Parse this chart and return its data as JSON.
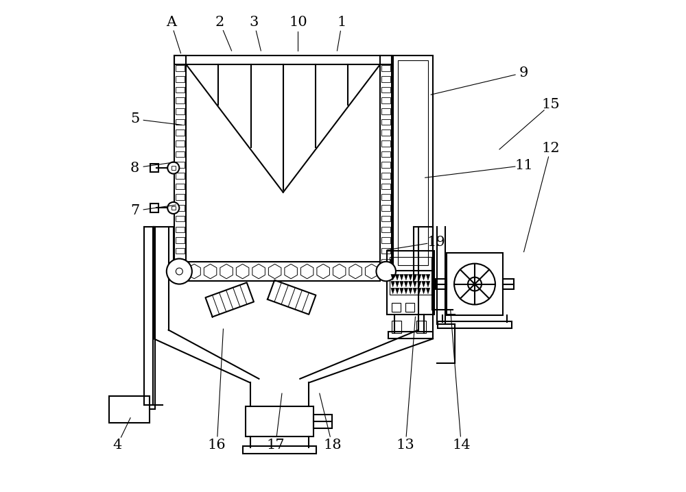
{
  "bg_color": "#ffffff",
  "lc": "#000000",
  "lw": 1.5,
  "fig_width": 10.0,
  "fig_height": 7.18,
  "label_fontsize": 15,
  "label_positions": {
    "A": [
      0.148,
      0.958,
      0.168,
      0.895
    ],
    "2": [
      0.248,
      0.958,
      0.272,
      0.9
    ],
    "3": [
      0.318,
      0.958,
      0.332,
      0.9
    ],
    "10": [
      0.408,
      0.958,
      0.408,
      0.9
    ],
    "1": [
      0.498,
      0.958,
      0.488,
      0.9
    ],
    "9": [
      0.87,
      0.855,
      0.68,
      0.81
    ],
    "5": [
      0.074,
      0.76,
      0.17,
      0.748
    ],
    "8": [
      0.074,
      0.66,
      0.158,
      0.672
    ],
    "7": [
      0.074,
      0.572,
      0.158,
      0.584
    ],
    "11": [
      0.87,
      0.665,
      0.668,
      0.64
    ],
    "19": [
      0.69,
      0.508,
      0.59,
      0.492
    ],
    "4": [
      0.038,
      0.092,
      0.065,
      0.148
    ],
    "16": [
      0.242,
      0.092,
      0.255,
      0.33
    ],
    "17": [
      0.362,
      0.092,
      0.375,
      0.198
    ],
    "18": [
      0.478,
      0.092,
      0.452,
      0.198
    ],
    "13": [
      0.628,
      0.092,
      0.648,
      0.355
    ],
    "14": [
      0.742,
      0.092,
      0.72,
      0.368
    ],
    "15": [
      0.925,
      0.79,
      0.82,
      0.698
    ],
    "12": [
      0.925,
      0.7,
      0.87,
      0.488
    ]
  }
}
